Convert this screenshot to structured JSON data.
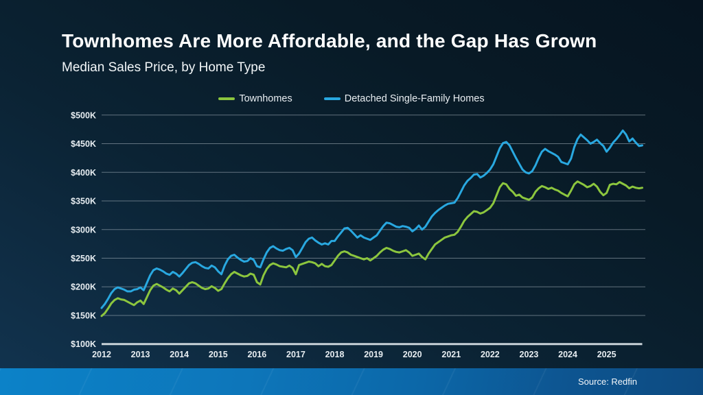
{
  "slide": {
    "title": "Townhomes Are More Affordable, and the Gap Has Grown",
    "subtitle": "Median Sales Price, by Home Type",
    "source": "Source: Redfin"
  },
  "colors": {
    "townhomes_line": "#8CC63E",
    "detached_line": "#29A8E0",
    "gridline": "#A9B6BF",
    "axis_baseline": "#D3DCE1",
    "tick_text": "#E7EDF1",
    "footer_gradient_left": "#0C82C8",
    "footer_gradient_right": "#0D4A80",
    "background": "#0B2334"
  },
  "legend": [
    {
      "label": "Townhomes",
      "color": "#8CC63E"
    },
    {
      "label": "Detached Single-Family Homes",
      "color": "#29A8E0"
    }
  ],
  "chart_data": {
    "type": "line",
    "title": "Median Sales Price, by Home Type",
    "x_unit": "month",
    "x_start": "2012-01",
    "x_end": "2025-12",
    "x_tick_labels": [
      "2012",
      "2013",
      "2014",
      "2015",
      "2016",
      "2017",
      "2018",
      "2019",
      "2020",
      "2021",
      "2022",
      "2023",
      "2024",
      "2025"
    ],
    "y_tick_labels": [
      "$100K",
      "$150K",
      "$200K",
      "$250K",
      "$300K",
      "$350K",
      "$400K",
      "$450K",
      "$500K"
    ],
    "y_tick_values_k": [
      100,
      150,
      200,
      250,
      300,
      350,
      400,
      450,
      500
    ],
    "ylim_k": [
      100,
      500
    ],
    "grid": true,
    "legend_position": "top-center",
    "series": [
      {
        "name": "Townhomes",
        "color": "#8CC63E",
        "values_k": [
          149,
          154,
          162,
          171,
          177,
          180,
          178,
          177,
          174,
          171,
          168,
          173,
          176,
          170,
          182,
          194,
          202,
          205,
          202,
          199,
          195,
          192,
          197,
          194,
          188,
          194,
          200,
          206,
          208,
          206,
          202,
          198,
          196,
          197,
          201,
          198,
          193,
          196,
          206,
          215,
          222,
          226,
          223,
          220,
          218,
          219,
          223,
          221,
          208,
          204,
          220,
          231,
          238,
          241,
          239,
          236,
          235,
          234,
          237,
          233,
          222,
          238,
          240,
          242,
          244,
          243,
          241,
          236,
          240,
          236,
          235,
          238,
          246,
          254,
          260,
          262,
          260,
          256,
          254,
          252,
          250,
          248,
          250,
          246,
          250,
          254,
          260,
          265,
          268,
          266,
          263,
          261,
          260,
          262,
          264,
          260,
          254,
          256,
          258,
          252,
          248,
          258,
          266,
          274,
          278,
          282,
          286,
          288,
          290,
          291,
          296,
          305,
          315,
          322,
          327,
          332,
          331,
          328,
          330,
          334,
          338,
          346,
          360,
          374,
          381,
          379,
          371,
          366,
          359,
          361,
          356,
          354,
          352,
          356,
          366,
          372,
          376,
          374,
          371,
          373,
          370,
          368,
          364,
          361,
          358,
          368,
          379,
          384,
          381,
          378,
          374,
          376,
          380,
          375,
          366,
          360,
          364,
          378,
          380,
          379,
          383,
          380,
          377,
          372,
          375,
          373,
          372,
          373
        ]
      },
      {
        "name": "Detached Single-Family Homes",
        "color": "#29A8E0",
        "values_k": [
          163,
          170,
          179,
          189,
          196,
          199,
          197,
          195,
          192,
          192,
          195,
          196,
          199,
          194,
          207,
          220,
          229,
          232,
          230,
          227,
          223,
          221,
          226,
          223,
          218,
          224,
          231,
          238,
          242,
          243,
          240,
          236,
          233,
          232,
          237,
          234,
          227,
          222,
          237,
          248,
          254,
          256,
          251,
          247,
          244,
          245,
          250,
          247,
          236,
          234,
          248,
          260,
          268,
          271,
          267,
          264,
          263,
          266,
          268,
          264,
          252,
          258,
          268,
          278,
          284,
          286,
          281,
          277,
          274,
          276,
          274,
          280,
          280,
          288,
          295,
          302,
          303,
          298,
          292,
          286,
          290,
          286,
          284,
          282,
          286,
          290,
          298,
          306,
          312,
          311,
          308,
          305,
          304,
          306,
          305,
          303,
          297,
          301,
          307,
          300,
          305,
          314,
          323,
          329,
          334,
          338,
          342,
          345,
          346,
          347,
          355,
          366,
          377,
          385,
          390,
          396,
          397,
          391,
          394,
          399,
          405,
          414,
          428,
          442,
          451,
          453,
          447,
          436,
          425,
          415,
          405,
          400,
          398,
          402,
          412,
          425,
          436,
          441,
          437,
          434,
          431,
          427,
          418,
          416,
          414,
          424,
          444,
          458,
          466,
          461,
          456,
          450,
          453,
          457,
          451,
          446,
          436,
          443,
          452,
          458,
          465,
          473,
          466,
          454,
          459,
          452,
          446,
          447
        ]
      }
    ]
  }
}
